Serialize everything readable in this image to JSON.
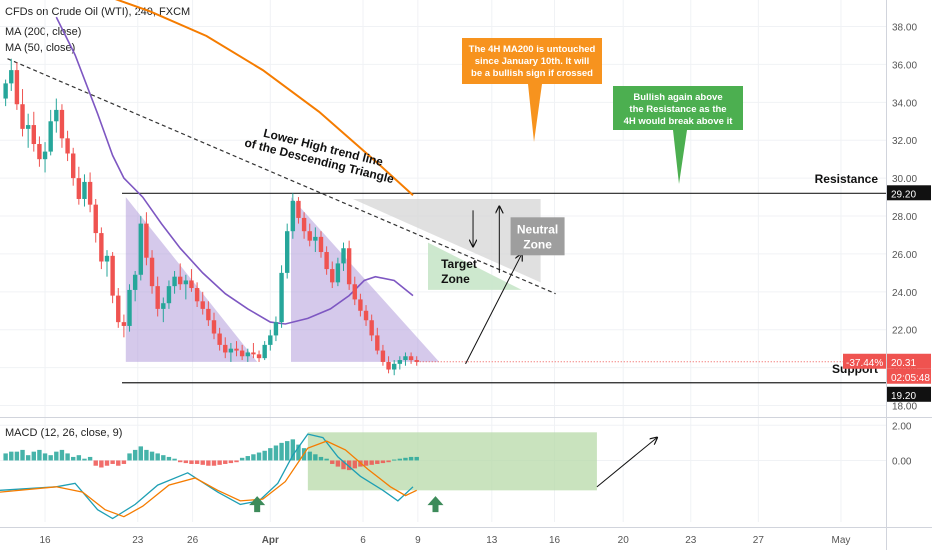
{
  "header": {
    "symbol_line": "CFDs on Crude Oil (WTI), 240, FXCM",
    "ma200_label": "MA (200, close)",
    "ma50_label": "MA (50, close)"
  },
  "macd": {
    "label": "MACD (12, 26, close, 9)"
  },
  "annotations": {
    "ma200_note": [
      "The 4H MA200 is untouched",
      "since January 10th. It will",
      "be a bullish sign if crossed"
    ],
    "bullish_note": [
      "Bullish again above",
      "the Resistance as the",
      "4H would break above it"
    ],
    "trendline_label": [
      "Lower High trend line",
      "of the Descending Triangle"
    ],
    "resistance_label": "Resistance",
    "support_label": "Support",
    "neutral_zone": [
      "Neutral",
      "Zone"
    ],
    "target_zone": [
      "Target",
      "Zone"
    ]
  },
  "price_tags": {
    "resistance": "29.20",
    "support": "19.20",
    "change": "-37.44%",
    "last": "20.31",
    "countdown": "02:05:48"
  },
  "colors": {
    "up": "#26a69a",
    "down": "#ef5350",
    "ma200": "#f57c00",
    "ma50": "#7e57c2",
    "triangle": "#b39ddb",
    "target_zone": "#c8e6c9",
    "neutral_zone": "#d6d6d6",
    "orange_note": "#f7931e",
    "green_note": "#4caf50"
  },
  "chart_data": {
    "type": "candlestick",
    "price_axis": {
      "ticks": [
        "38.00",
        "36.00",
        "34.00",
        "32.00",
        "30.00",
        "28.00",
        "26.00",
        "24.00",
        "22.00",
        "20.00",
        "18.00"
      ],
      "range": [
        17.5,
        39.4
      ]
    },
    "time_axis": {
      "labels": [
        "16",
        "23",
        "26",
        "Apr",
        "6",
        "9",
        "13",
        "16",
        "20",
        "23",
        "27",
        "May"
      ],
      "positions": [
        12,
        36.7,
        51.3,
        72,
        96.7,
        111.3,
        131,
        147.7,
        166,
        184,
        202,
        224
      ]
    },
    "x_range": [
      0,
      236
    ],
    "candles": [
      [
        1.5,
        34.2,
        35.2,
        33.8,
        35.0
      ],
      [
        3,
        35.0,
        36.3,
        34.6,
        35.7
      ],
      [
        4.5,
        35.7,
        36.1,
        33.6,
        33.9
      ],
      [
        6,
        33.9,
        34.7,
        32.2,
        32.6
      ],
      [
        7.5,
        32.6,
        33.4,
        31.6,
        32.8
      ],
      [
        9,
        32.8,
        33.5,
        31.4,
        31.8
      ],
      [
        10.5,
        31.8,
        32.2,
        30.6,
        31.0
      ],
      [
        12,
        31.0,
        31.9,
        30.3,
        31.4
      ],
      [
        13.5,
        31.4,
        33.6,
        31.2,
        33.0
      ],
      [
        15,
        33.0,
        34.2,
        32.4,
        33.6
      ],
      [
        16.5,
        33.6,
        33.9,
        31.6,
        32.1
      ],
      [
        18,
        32.1,
        32.5,
        30.9,
        31.3
      ],
      [
        19.5,
        31.3,
        31.6,
        29.6,
        30.0
      ],
      [
        21,
        30.0,
        30.6,
        28.6,
        28.9
      ],
      [
        22.5,
        28.9,
        30.2,
        28.5,
        29.8
      ],
      [
        24,
        29.8,
        30.3,
        28.2,
        28.6
      ],
      [
        25.5,
        28.6,
        28.9,
        26.6,
        27.1
      ],
      [
        27,
        27.1,
        27.4,
        25.2,
        25.6
      ],
      [
        28.5,
        25.6,
        26.2,
        24.8,
        25.9
      ],
      [
        30,
        25.9,
        26.1,
        23.4,
        23.8
      ],
      [
        31.5,
        23.8,
        24.2,
        22.1,
        22.4
      ],
      [
        33,
        22.4,
        22.8,
        21.6,
        22.2
      ],
      [
        34.5,
        22.2,
        24.4,
        21.9,
        24.1
      ],
      [
        36,
        24.1,
        25.1,
        23.5,
        24.9
      ],
      [
        37.5,
        24.9,
        28.0,
        24.6,
        27.6
      ],
      [
        39,
        27.6,
        28.2,
        25.4,
        25.8
      ],
      [
        40.5,
        25.8,
        26.2,
        23.9,
        24.3
      ],
      [
        42,
        24.3,
        24.8,
        22.7,
        23.1
      ],
      [
        43.5,
        23.1,
        23.7,
        22.4,
        23.4
      ],
      [
        45,
        23.4,
        24.6,
        23.1,
        24.3
      ],
      [
        46.5,
        24.3,
        25.1,
        23.9,
        24.8
      ],
      [
        48,
        24.8,
        25.5,
        24.1,
        24.4
      ],
      [
        49.5,
        24.4,
        24.9,
        23.6,
        24.6
      ],
      [
        51,
        24.6,
        25.2,
        24.0,
        24.2
      ],
      [
        52.5,
        24.2,
        24.5,
        23.2,
        23.5
      ],
      [
        54,
        23.5,
        24.0,
        22.8,
        23.1
      ],
      [
        55.5,
        23.1,
        23.5,
        22.2,
        22.5
      ],
      [
        57,
        22.5,
        22.9,
        21.5,
        21.8
      ],
      [
        58.5,
        21.8,
        22.1,
        20.9,
        21.2
      ],
      [
        60,
        21.2,
        21.6,
        20.5,
        20.8
      ],
      [
        61.5,
        20.8,
        21.3,
        20.3,
        21.0
      ],
      [
        63,
        21.0,
        21.4,
        20.6,
        20.9
      ],
      [
        64.5,
        20.9,
        21.2,
        20.4,
        20.6
      ],
      [
        66,
        20.6,
        21.0,
        20.3,
        20.8
      ],
      [
        67.5,
        20.8,
        21.3,
        20.5,
        20.7
      ],
      [
        69,
        20.7,
        20.9,
        20.3,
        20.5
      ],
      [
        70.5,
        20.5,
        21.4,
        20.4,
        21.2
      ],
      [
        72,
        21.2,
        22.0,
        20.9,
        21.7
      ],
      [
        73.5,
        21.7,
        22.7,
        21.4,
        22.4
      ],
      [
        75,
        22.4,
        25.4,
        22.1,
        25.0
      ],
      [
        76.5,
        25.0,
        27.6,
        24.7,
        27.2
      ],
      [
        78,
        27.2,
        29.2,
        26.8,
        28.8
      ],
      [
        79.5,
        28.8,
        29.0,
        27.6,
        27.9
      ],
      [
        81,
        27.9,
        28.2,
        26.8,
        27.2
      ],
      [
        82.5,
        27.2,
        27.6,
        26.4,
        26.7
      ],
      [
        84,
        26.7,
        27.4,
        26.1,
        26.9
      ],
      [
        85.5,
        26.9,
        27.2,
        25.8,
        26.1
      ],
      [
        87,
        26.1,
        26.4,
        24.9,
        25.2
      ],
      [
        88.5,
        25.2,
        25.6,
        24.2,
        24.5
      ],
      [
        90,
        24.5,
        25.8,
        24.3,
        25.5
      ],
      [
        91.5,
        25.5,
        26.6,
        25.1,
        26.3
      ],
      [
        93,
        26.3,
        26.7,
        24.1,
        24.4
      ],
      [
        94.5,
        24.4,
        24.8,
        23.3,
        23.6
      ],
      [
        96,
        23.6,
        23.9,
        22.7,
        23.0
      ],
      [
        97.5,
        23.0,
        23.3,
        22.2,
        22.5
      ],
      [
        99,
        22.5,
        22.8,
        21.4,
        21.7
      ],
      [
        100.5,
        21.7,
        22.1,
        20.7,
        20.9
      ],
      [
        102,
        20.9,
        21.2,
        20.1,
        20.3
      ],
      [
        103.5,
        20.3,
        20.6,
        19.7,
        19.9
      ],
      [
        105,
        19.9,
        20.4,
        19.6,
        20.2
      ],
      [
        106.5,
        20.2,
        20.6,
        19.9,
        20.4
      ],
      [
        108,
        20.4,
        20.8,
        20.1,
        20.6
      ],
      [
        109.5,
        20.6,
        20.8,
        20.2,
        20.4
      ],
      [
        111,
        20.4,
        20.6,
        20.1,
        20.3
      ]
    ],
    "overlays": {
      "ma200": [
        [
          0,
          41.5
        ],
        [
          20,
          40.2
        ],
        [
          40,
          38.8
        ],
        [
          55,
          37.5
        ],
        [
          70,
          35.7
        ],
        [
          85,
          33.5
        ],
        [
          100,
          30.9
        ],
        [
          110,
          29.1
        ]
      ],
      "ma50": [
        [
          15,
          38.5
        ],
        [
          20,
          36.5
        ],
        [
          26,
          33.4
        ],
        [
          30,
          31.2
        ],
        [
          33,
          30.0
        ],
        [
          38,
          29.0
        ],
        [
          43,
          27.6
        ],
        [
          48,
          26.3
        ],
        [
          54,
          25.0
        ],
        [
          60,
          23.9
        ],
        [
          66,
          23.1
        ],
        [
          72,
          22.4
        ],
        [
          76,
          22.3
        ],
        [
          82,
          22.6
        ],
        [
          88,
          23.1
        ],
        [
          93,
          23.8
        ],
        [
          97,
          24.6
        ],
        [
          100,
          24.8
        ],
        [
          105,
          24.6
        ],
        [
          110,
          23.8
        ]
      ],
      "trendline": [
        [
          2,
          36.3
        ],
        [
          148,
          23.9
        ]
      ],
      "resistance": 29.2,
      "support": 19.2,
      "triangle1": [
        [
          33.5,
          29.0
        ],
        [
          33.5,
          20.3
        ],
        [
          68.5,
          20.3
        ]
      ],
      "triangle2": [
        [
          77.5,
          29.0
        ],
        [
          77.5,
          20.3
        ],
        [
          117,
          20.3
        ]
      ],
      "neutral_zone": [
        [
          94,
          28.9
        ],
        [
          144,
          28.9
        ],
        [
          144,
          24.5
        ]
      ],
      "target_zone": [
        [
          114,
          26.6
        ],
        [
          114,
          24.1
        ],
        [
          139,
          24.1
        ]
      ]
    },
    "macd_axis": {
      "ticks": [
        "2.00",
        "0.00"
      ],
      "range": [
        -3.5,
        2.3
      ]
    },
    "macd_histogram": [
      [
        1.5,
        0.4
      ],
      [
        3,
        0.5
      ],
      [
        4.5,
        0.5
      ],
      [
        6,
        0.6
      ],
      [
        7.5,
        0.3
      ],
      [
        9,
        0.5
      ],
      [
        10.5,
        0.6
      ],
      [
        12,
        0.4
      ],
      [
        13.5,
        0.3
      ],
      [
        15,
        0.5
      ],
      [
        16.5,
        0.6
      ],
      [
        18,
        0.4
      ],
      [
        19.5,
        0.2
      ],
      [
        21,
        0.3
      ],
      [
        22.5,
        0.1
      ],
      [
        24,
        0.2
      ],
      [
        25.5,
        -0.3
      ],
      [
        27,
        -0.4
      ],
      [
        28.5,
        -0.3
      ],
      [
        30,
        -0.2
      ],
      [
        31.5,
        -0.3
      ],
      [
        33,
        -0.2
      ],
      [
        34.5,
        0.4
      ],
      [
        36,
        0.6
      ],
      [
        37.5,
        0.8
      ],
      [
        39,
        0.6
      ],
      [
        40.5,
        0.5
      ],
      [
        42,
        0.4
      ],
      [
        43.5,
        0.3
      ],
      [
        45,
        0.2
      ],
      [
        46.5,
        0.1
      ],
      [
        48,
        -0.1
      ],
      [
        49.5,
        -0.15
      ],
      [
        51,
        -0.2
      ],
      [
        52.5,
        -0.2
      ],
      [
        54,
        -0.25
      ],
      [
        55.5,
        -0.3
      ],
      [
        57,
        -0.3
      ],
      [
        58.5,
        -0.25
      ],
      [
        60,
        -0.2
      ],
      [
        61.5,
        -0.15
      ],
      [
        63,
        -0.1
      ],
      [
        64.5,
        0.15
      ],
      [
        66,
        0.25
      ],
      [
        67.5,
        0.35
      ],
      [
        69,
        0.45
      ],
      [
        70.5,
        0.55
      ],
      [
        72,
        0.7
      ],
      [
        73.5,
        0.85
      ],
      [
        75,
        1.0
      ],
      [
        76.5,
        1.1
      ],
      [
        78,
        1.2
      ],
      [
        79.5,
        0.9
      ],
      [
        81,
        0.7
      ],
      [
        82.5,
        0.5
      ],
      [
        84,
        0.35
      ],
      [
        85.5,
        0.2
      ],
      [
        87,
        0.1
      ],
      [
        88.5,
        -0.2
      ],
      [
        90,
        -0.35
      ],
      [
        91.5,
        -0.5
      ],
      [
        93,
        -0.55
      ],
      [
        94.5,
        -0.45
      ],
      [
        96,
        -0.35
      ],
      [
        97.5,
        -0.3
      ],
      [
        99,
        -0.25
      ],
      [
        100.5,
        -0.2
      ],
      [
        102,
        -0.15
      ],
      [
        103.5,
        -0.1
      ],
      [
        105,
        0.05
      ],
      [
        106.5,
        0.1
      ],
      [
        108,
        0.15
      ],
      [
        109.5,
        0.2
      ],
      [
        111,
        0.2
      ]
    ],
    "macd_line": [
      [
        0,
        -1.7
      ],
      [
        15,
        -1.5
      ],
      [
        20,
        -1.3
      ],
      [
        26,
        -2.8
      ],
      [
        30,
        -3.3
      ],
      [
        36,
        -2.5
      ],
      [
        42,
        -1.4
      ],
      [
        50,
        -0.7
      ],
      [
        58,
        -1.8
      ],
      [
        64,
        -2.5
      ],
      [
        69,
        -2.3
      ],
      [
        74,
        -1.3
      ],
      [
        78,
        0.3
      ],
      [
        82,
        1.5
      ],
      [
        86,
        1.3
      ],
      [
        90,
        0.2
      ],
      [
        96,
        -0.9
      ],
      [
        102,
        -1.7
      ],
      [
        106,
        -2.3
      ],
      [
        110,
        -1.5
      ]
    ],
    "signal_line": [
      [
        0,
        -1.8
      ],
      [
        15,
        -1.5
      ],
      [
        22,
        -1.8
      ],
      [
        28,
        -2.8
      ],
      [
        33,
        -3.2
      ],
      [
        38,
        -2.6
      ],
      [
        45,
        -1.4
      ],
      [
        52,
        -1.0
      ],
      [
        58,
        -1.7
      ],
      [
        64,
        -2.3
      ],
      [
        70,
        -2.2
      ],
      [
        76,
        -1.2
      ],
      [
        82,
        0.7
      ],
      [
        87,
        1.1
      ],
      [
        92,
        0.6
      ],
      [
        98,
        -0.5
      ],
      [
        104,
        -1.5
      ],
      [
        108,
        -2.0
      ],
      [
        111,
        -1.7
      ]
    ],
    "macd_zone": [
      [
        82,
        1.6
      ],
      [
        159,
        -1.7
      ]
    ],
    "arrows": [
      {
        "from": [
          124,
          20.2
        ],
        "to": [
          139,
          26.0
        ]
      },
      {
        "from": [
          126,
          28.3
        ],
        "to": [
          126,
          26.4
        ]
      },
      {
        "from": [
          133,
          25.0
        ],
        "to": [
          133,
          28.5
        ]
      },
      {
        "from": [
          159,
          -1.5
        ],
        "to": [
          175,
          1.3
        ]
      }
    ]
  }
}
